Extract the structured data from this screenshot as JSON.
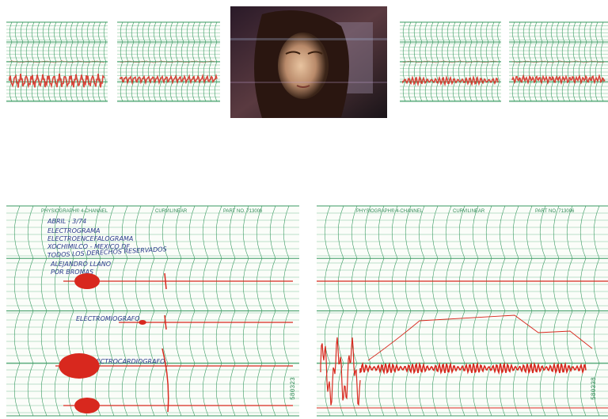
{
  "charts": [
    {
      "header": "PHYSIOGRAPH® 4-CHANNEL",
      "paper": "CURVILINEAR",
      "part": "PART NO. 713006",
      "serial": "580323",
      "notes": [
        "ABRIL - 3/74",
        "ELECTROGRAMA",
        "ELECTROENCEFALOGRAMA",
        "XOCHIMILCO - MEXICO DF",
        "TODOS LOS DERECHOS RESERVADOS",
        "ALEJANDRO LLANO",
        "POR BROMAS"
      ],
      "labels": [
        "ELECTROMIOGRAFO",
        "ELECTROCARDIOGRAFO"
      ]
    },
    {
      "header": "PHYSIOGRAPH® 4-CHANNEL",
      "paper": "CURVILINEAR",
      "part": "PART NO. 713006",
      "serial": "580338"
    }
  ]
}
